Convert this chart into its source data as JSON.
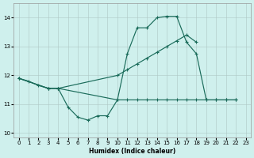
{
  "bg_color": "#cff0ed",
  "grid_color": "#adc8c5",
  "line_color": "#1a6b5a",
  "xlabel": "Humidex (Indice chaleur)",
  "xlim": [
    -0.5,
    23.5
  ],
  "ylim": [
    9.85,
    14.5
  ],
  "yticks": [
    10,
    11,
    12,
    13,
    14
  ],
  "xticks": [
    0,
    1,
    2,
    3,
    4,
    5,
    6,
    7,
    8,
    9,
    10,
    11,
    12,
    13,
    14,
    15,
    16,
    17,
    18,
    19,
    20,
    21,
    22,
    23
  ],
  "series": [
    {
      "x": [
        0,
        1,
        2,
        3,
        4,
        5,
        6,
        7,
        8,
        9,
        10,
        11,
        12,
        13,
        14,
        15,
        16,
        17,
        18,
        19,
        20,
        21,
        22
      ],
      "y": [
        11.9,
        11.8,
        11.65,
        11.55,
        11.55,
        10.9,
        10.55,
        10.45,
        10.6,
        10.6,
        11.15,
        12.75,
        13.65,
        13.65,
        14.0,
        14.05,
        14.05,
        13.15,
        12.75,
        11.15,
        11.15,
        11.15,
        11.15
      ]
    },
    {
      "x": [
        0,
        3,
        4,
        10,
        11,
        12,
        13,
        14,
        15,
        16,
        17,
        18
      ],
      "y": [
        11.9,
        11.55,
        11.55,
        12.0,
        12.2,
        12.4,
        12.6,
        12.8,
        13.0,
        13.2,
        13.4,
        13.15
      ]
    },
    {
      "x": [
        0,
        3,
        4,
        10,
        11,
        12,
        13,
        14,
        15,
        16,
        17,
        18,
        19,
        20,
        21,
        22
      ],
      "y": [
        11.9,
        11.55,
        11.55,
        11.15,
        11.15,
        11.15,
        11.15,
        11.15,
        11.15,
        11.15,
        11.15,
        11.15,
        11.15,
        11.15,
        11.15,
        11.15
      ]
    }
  ]
}
